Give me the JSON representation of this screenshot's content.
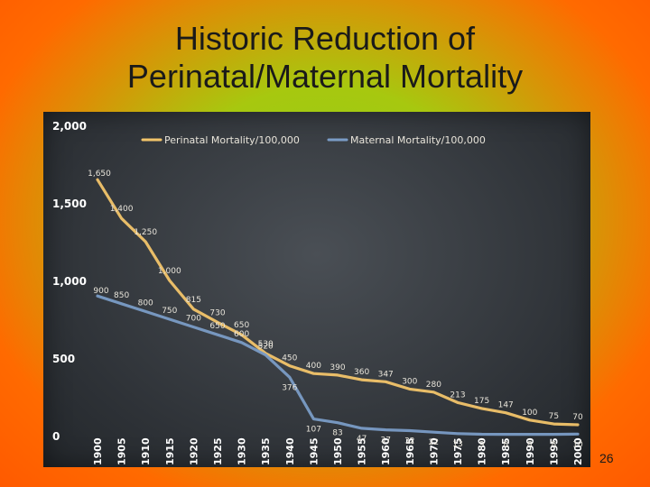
{
  "slide": {
    "title_line1": "Historic Reduction of",
    "title_line2": "Perinatal/Maternal Mortality",
    "page_number": "26"
  },
  "colors": {
    "perinatal": "#f2c46a",
    "maternal": "#7a9cc6",
    "tick_text": "#ffffff",
    "label_text": "#e8e4da"
  },
  "chart_data": {
    "type": "line",
    "title": "",
    "xlabel": "",
    "ylabel": "",
    "ylim": [
      0,
      2000
    ],
    "y_ticks": [
      "0",
      "500",
      "1,000",
      "1,500",
      "2,000"
    ],
    "y_tick_values": [
      0,
      500,
      1000,
      1500,
      2000
    ],
    "x": [
      "1900",
      "1905",
      "1910",
      "1915",
      "1920",
      "1925",
      "1930",
      "1935",
      "1940",
      "1945",
      "1950",
      "1955",
      "1960",
      "1965",
      "1970",
      "1975",
      "1980",
      "1985",
      "1990",
      "1995",
      "2000"
    ],
    "legend_placement": "top",
    "series": [
      {
        "name": "Perinatal Mortality/100,000",
        "values": [
          1650,
          1400,
          1250,
          1000,
          815,
          730,
          650,
          530,
          450,
          400,
          390,
          360,
          347,
          300,
          280,
          213,
          175,
          147,
          100,
          75,
          70
        ],
        "labels": [
          "1,650",
          "1,400",
          "1,250",
          "1,000",
          "815",
          "730",
          "650",
          "530",
          "450",
          "400",
          "390",
          "360",
          "347",
          "300",
          "280",
          "213",
          "175",
          "147",
          "100",
          "75",
          "70"
        ]
      },
      {
        "name": "Maternal Mortality/100,000",
        "values": [
          900,
          850,
          800,
          750,
          700,
          650,
          600,
          520,
          376,
          107,
          83,
          47,
          37,
          32,
          22,
          13,
          9,
          8,
          8,
          8,
          10
        ],
        "labels": [
          "900",
          "850",
          "800",
          "750",
          "700",
          "650",
          "600",
          "520",
          "376",
          "107",
          "83",
          "47",
          "37",
          "32",
          "22",
          "13",
          "9",
          "8",
          "8",
          "8",
          "10"
        ]
      }
    ]
  }
}
